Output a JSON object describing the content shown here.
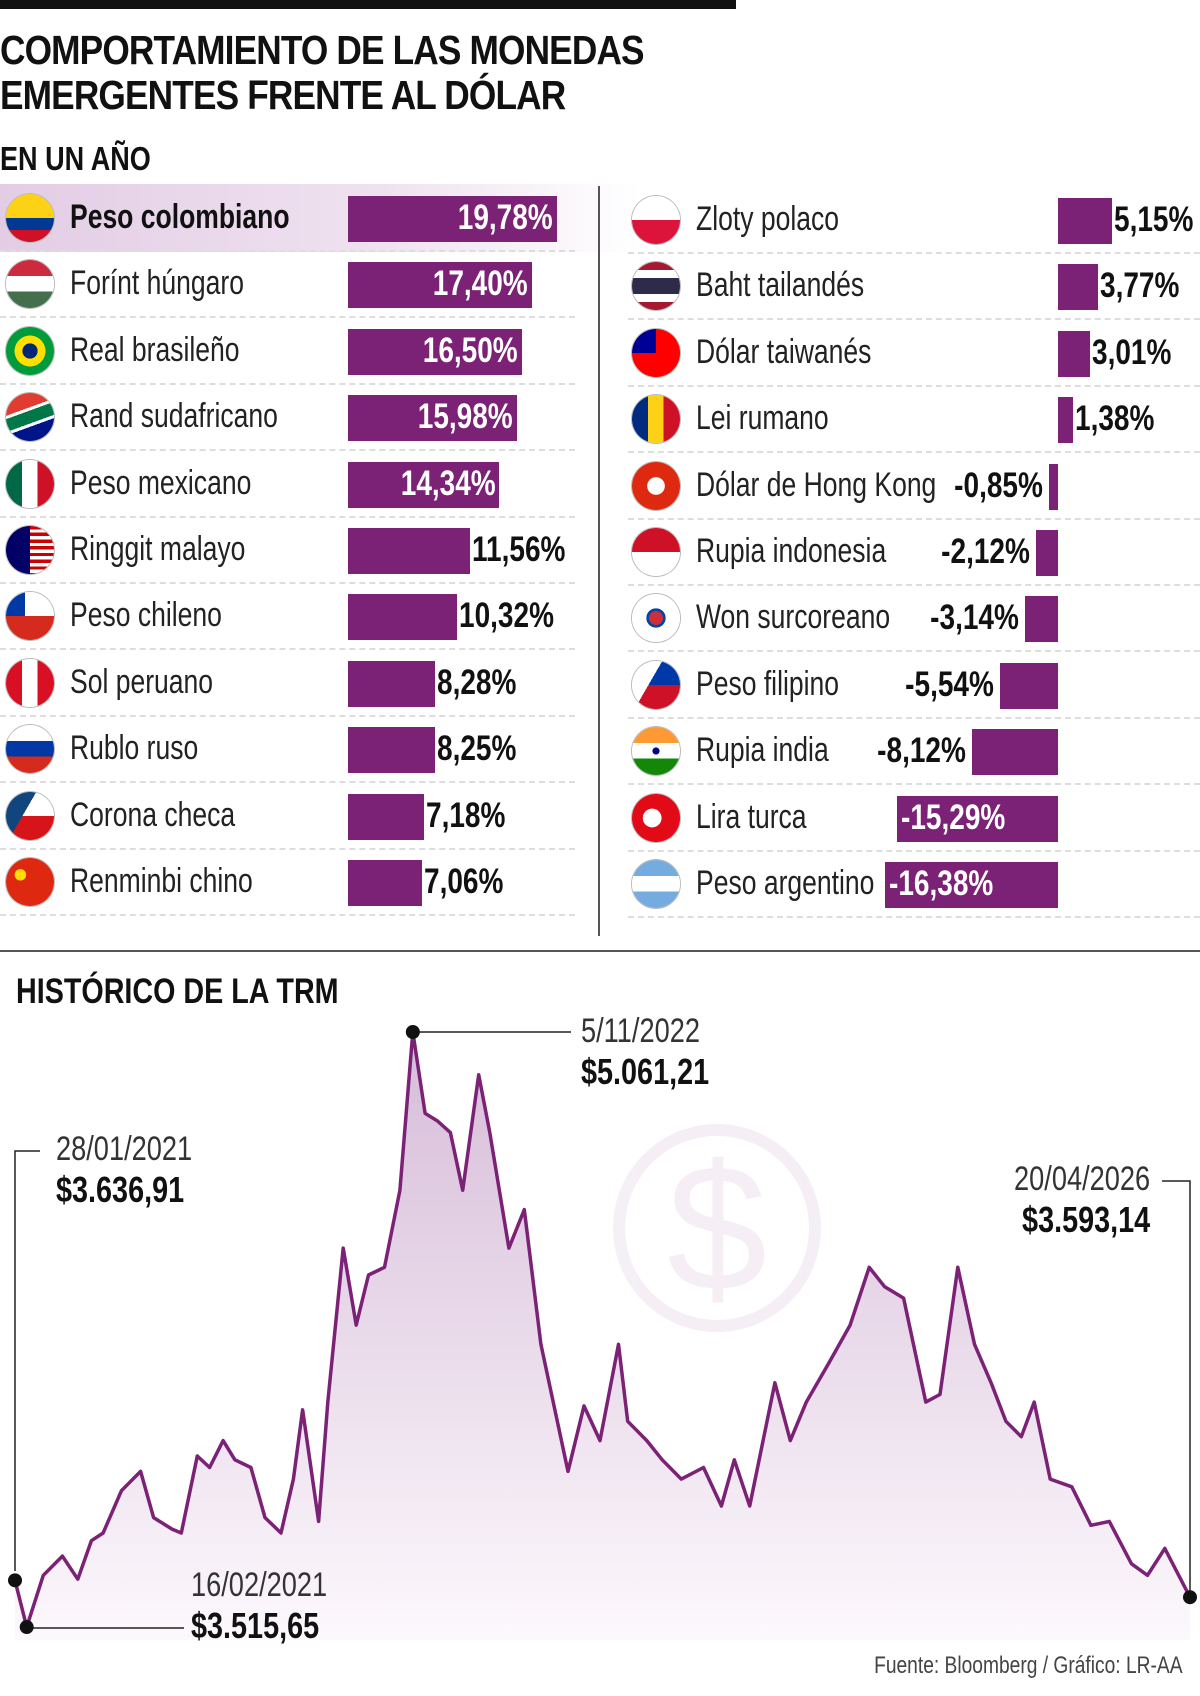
{
  "title_line1": "COMPORTAMIENTO DE LAS MONEDAS",
  "title_line2": "EMERGENTES FRENTE AL DÓLAR",
  "subtitle": "EN UN AÑO",
  "accent_color": "#7b2276",
  "currencies_left": [
    {
      "name": "Peso colombiano",
      "value": 19.78,
      "label": "19,78%",
      "flag": "co",
      "highlight": true
    },
    {
      "name": "Forínt húngaro",
      "value": 17.4,
      "label": "17,40%",
      "flag": "hu"
    },
    {
      "name": "Real brasileño",
      "value": 16.5,
      "label": "16,50%",
      "flag": "br"
    },
    {
      "name": "Rand sudafricano",
      "value": 15.98,
      "label": "15,98%",
      "flag": "za"
    },
    {
      "name": "Peso mexicano",
      "value": 14.34,
      "label": "14,34%",
      "flag": "mx"
    },
    {
      "name": "Ringgit malayo",
      "value": 11.56,
      "label": "11,56%",
      "flag": "my"
    },
    {
      "name": "Peso chileno",
      "value": 10.32,
      "label": "10,32%",
      "flag": "cl"
    },
    {
      "name": "Sol peruano",
      "value": 8.28,
      "label": "8,28%",
      "flag": "pe"
    },
    {
      "name": "Rublo ruso",
      "value": 8.25,
      "label": "8,25%",
      "flag": "ru"
    },
    {
      "name": "Corona checa",
      "value": 7.18,
      "label": "7,18%",
      "flag": "cz"
    },
    {
      "name": "Renminbi chino",
      "value": 7.06,
      "label": "7,06%",
      "flag": "cn"
    }
  ],
  "currencies_right": [
    {
      "name": "Zloty polaco",
      "value": 5.15,
      "label": "5,15%",
      "flag": "pl"
    },
    {
      "name": "Baht tailandés",
      "value": 3.77,
      "label": "3,77%",
      "flag": "th"
    },
    {
      "name": "Dólar taiwanés",
      "value": 3.01,
      "label": "3,01%",
      "flag": "tw"
    },
    {
      "name": "Lei rumano",
      "value": 1.38,
      "label": "1,38%",
      "flag": "ro"
    },
    {
      "name": "Dólar de Hong Kong",
      "value": -0.85,
      "label": "-0,85%",
      "flag": "hk"
    },
    {
      "name": "Rupia indonesia",
      "value": -2.12,
      "label": "-2,12%",
      "flag": "id"
    },
    {
      "name": "Won surcoreano",
      "value": -3.14,
      "label": "-3,14%",
      "flag": "kr"
    },
    {
      "name": "Peso filipino",
      "value": -5.54,
      "label": "-5,54%",
      "flag": "ph"
    },
    {
      "name": "Rupia india",
      "value": -8.12,
      "label": "-8,12%",
      "flag": "in"
    },
    {
      "name": "Lira turca",
      "value": -15.29,
      "label": "-15,29%",
      "flag": "tr"
    },
    {
      "name": "Peso argentino",
      "value": -16.38,
      "label": "-16,38%",
      "flag": "ar"
    }
  ],
  "chart_data": {
    "type": "area",
    "title": "HISTÓRICO DE LA TRM",
    "watermark_icon": "dollar-coin-icon",
    "series": [
      {
        "values": [
          [
            "2021-01-28",
            3636.91
          ],
          [
            "2021-02-16",
            3515.65
          ],
          [
            "2021-03-15",
            3650
          ],
          [
            "2021-04-15",
            3700
          ],
          [
            "2021-05-10",
            3640
          ],
          [
            "2021-06-01",
            3740
          ],
          [
            "2021-06-20",
            3760
          ],
          [
            "2021-07-20",
            3870
          ],
          [
            "2021-08-20",
            3920
          ],
          [
            "2021-09-10",
            3800
          ],
          [
            "2021-10-10",
            3770
          ],
          [
            "2021-10-25",
            3760
          ],
          [
            "2021-11-20",
            3960
          ],
          [
            "2021-12-10",
            3930
          ],
          [
            "2022-01-01",
            4000
          ],
          [
            "2022-01-20",
            3950
          ],
          [
            "2022-02-15",
            3930
          ],
          [
            "2022-03-10",
            3800
          ],
          [
            "2022-04-05",
            3760
          ],
          [
            "2022-04-25",
            3900
          ],
          [
            "2022-05-10",
            4080
          ],
          [
            "2022-06-05",
            3790
          ],
          [
            "2022-06-20",
            4100
          ],
          [
            "2022-07-15",
            4500
          ],
          [
            "2022-08-05",
            4300
          ],
          [
            "2022-08-25",
            4430
          ],
          [
            "2022-09-20",
            4450
          ],
          [
            "2022-10-15",
            4650
          ],
          [
            "2022-11-05",
            5061.21
          ],
          [
            "2022-11-25",
            4850
          ],
          [
            "2022-12-15",
            4830
          ],
          [
            "2023-01-05",
            4800
          ],
          [
            "2023-01-25",
            4650
          ],
          [
            "2023-02-20",
            4950
          ],
          [
            "2023-03-10",
            4800
          ],
          [
            "2023-04-10",
            4500
          ],
          [
            "2023-05-05",
            4600
          ],
          [
            "2023-06-01",
            4250
          ],
          [
            "2023-07-15",
            3920
          ],
          [
            "2023-08-10",
            4090
          ],
          [
            "2023-09-05",
            4000
          ],
          [
            "2023-10-05",
            4250
          ],
          [
            "2023-10-20",
            4050
          ],
          [
            "2023-11-20",
            4000
          ],
          [
            "2023-12-15",
            3950
          ],
          [
            "2024-01-15",
            3900
          ],
          [
            "2024-02-20",
            3930
          ],
          [
            "2024-03-20",
            3830
          ],
          [
            "2024-04-10",
            3950
          ],
          [
            "2024-05-05",
            3830
          ],
          [
            "2024-06-15",
            4150
          ],
          [
            "2024-07-10",
            4000
          ],
          [
            "2024-08-05",
            4100
          ],
          [
            "2024-09-10",
            4200
          ],
          [
            "2024-10-15",
            4300
          ],
          [
            "2024-11-15",
            4450
          ],
          [
            "2024-12-10",
            4400
          ],
          [
            "2025-01-10",
            4370
          ],
          [
            "2025-02-15",
            4100
          ],
          [
            "2025-03-10",
            4120
          ],
          [
            "2025-04-08",
            4450
          ],
          [
            "2025-05-05",
            4250
          ],
          [
            "2025-06-01",
            4150
          ],
          [
            "2025-06-25",
            4050
          ],
          [
            "2025-07-20",
            4010
          ],
          [
            "2025-08-10",
            4100
          ],
          [
            "2025-09-05",
            3900
          ],
          [
            "2025-10-10",
            3880
          ],
          [
            "2025-11-10",
            3780
          ],
          [
            "2025-12-10",
            3790
          ],
          [
            "2026-01-15",
            3680
          ],
          [
            "2026-02-10",
            3650
          ],
          [
            "2026-03-10",
            3720
          ],
          [
            "2026-04-20",
            3593.14
          ]
        ]
      }
    ],
    "ylim": [
      3515.65,
      5061.21
    ],
    "annotations": [
      {
        "date": "28/01/2021",
        "value": "$3.636,91"
      },
      {
        "date": "16/02/2021",
        "value": "$3.515,65"
      },
      {
        "date": "5/11/2022",
        "value": "$5.061,21"
      },
      {
        "date": "20/04/2026",
        "value": "$3.593,14"
      }
    ]
  },
  "source": "Fuente: Bloomberg / Gráfico: LR-AA"
}
